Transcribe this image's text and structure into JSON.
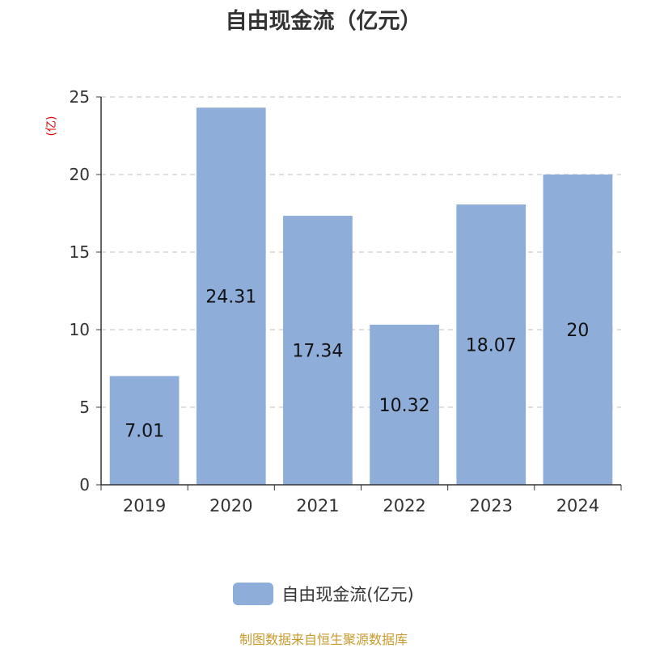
{
  "title": "自由现金流（亿元）",
  "unit_label": "(亿)",
  "footer": "制图数据来自恒生聚源数据库",
  "colors": {
    "bar": "#8eadd8",
    "unit_label": "#dd0000",
    "grid": "#cccccc",
    "axis": "#333333",
    "footer": "#c99a2e"
  },
  "chart_data": {
    "type": "bar",
    "title": "自由现金流（亿元）",
    "categories": [
      "2019",
      "2020",
      "2021",
      "2022",
      "2023",
      "2024"
    ],
    "series": [
      {
        "name": "自由现金流(亿元)",
        "values": [
          7.01,
          24.31,
          17.34,
          10.32,
          18.07,
          20
        ],
        "labels": [
          "7.01",
          "24.31",
          "17.34",
          "10.32",
          "18.07",
          "20"
        ]
      }
    ],
    "ylabel": "(亿)",
    "ylim": [
      0,
      25
    ],
    "yticks": [
      0,
      5,
      10,
      15,
      20,
      25
    ],
    "grid": true,
    "legend": "bottom-center"
  }
}
